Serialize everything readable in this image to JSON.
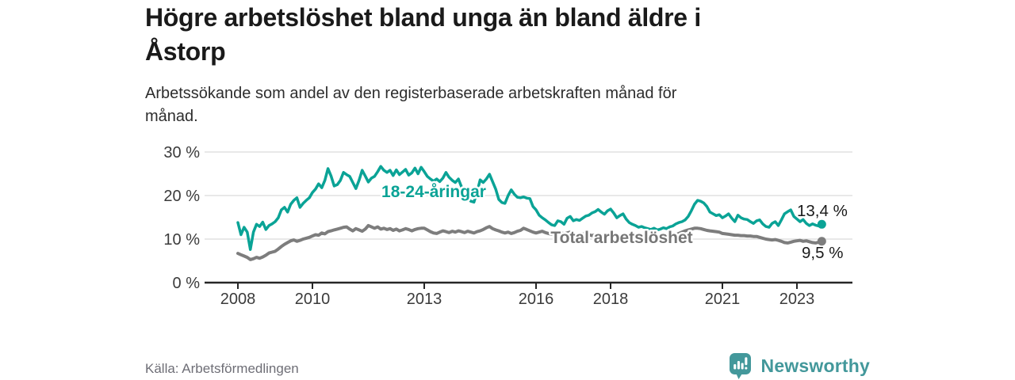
{
  "header": {
    "title": "Högre arbetslöshet bland unga än bland äldre i Åstorp",
    "subtitle": "Arbetssökande som andel av den registerbaserade arbetskraften månad för månad."
  },
  "footer": {
    "source": "Källa: Arbetsförmedlingen",
    "brand": "Newsworthy",
    "brand_icon": "newsworthy-bar-chart-bubble-icon"
  },
  "colors": {
    "youth_line": "#0aa396",
    "total_line": "#7d7d7d",
    "total_label": "#767676",
    "value_label": "#1a1a1a",
    "axis": "#262626",
    "grid": "#d9d9d9",
    "tick_text": "#3b3b3b",
    "brand_teal": "#43989b"
  },
  "chart_data": {
    "type": "line",
    "x_start": "2008-01",
    "x_end": "2023-09",
    "frequency": "monthly",
    "grid": "horizontal-only",
    "legend_position": "inline-series-labels",
    "x_ticks": [
      2008,
      2010,
      2013,
      2016,
      2018,
      2021,
      2023
    ],
    "y_ticks": [
      0,
      10,
      20,
      30
    ],
    "y_tick_labels": [
      "0 %",
      "10 %",
      "20 %",
      "30 %"
    ],
    "ylim": [
      0,
      31
    ],
    "ylabel": "",
    "xlabel": "",
    "series": [
      {
        "name": "18-24-åringar",
        "color_key": "youth_line",
        "end_label": "13,4 %",
        "last_value": 13.4,
        "values": [
          13.8,
          11.0,
          12.7,
          11.6,
          7.6,
          11.6,
          13.4,
          12.9,
          13.9,
          12.2,
          13.1,
          13.5,
          14.0,
          14.9,
          16.7,
          17.3,
          16.2,
          18.0,
          18.9,
          19.5,
          17.3,
          18.2,
          18.9,
          19.5,
          20.7,
          21.5,
          22.7,
          21.8,
          23.5,
          26.2,
          24.5,
          22.2,
          22.5,
          23.5,
          25.3,
          24.8,
          24.4,
          23.0,
          21.6,
          23.5,
          25.8,
          24.5,
          23.1,
          24.0,
          24.4,
          25.5,
          26.7,
          25.8,
          25.3,
          25.8,
          24.6,
          25.9,
          24.8,
          25.4,
          26.0,
          24.7,
          25.2,
          26.3,
          25.0,
          26.5,
          25.5,
          24.4,
          23.8,
          23.3,
          23.8,
          23.2,
          24.0,
          25.3,
          24.2,
          23.5,
          23.0,
          23.8,
          22.0,
          20.5,
          19.4,
          18.7,
          18.5,
          20.8,
          23.6,
          23.0,
          23.8,
          24.9,
          23.2,
          21.5,
          19.1,
          18.4,
          18.2,
          20.0,
          21.3,
          20.3,
          19.6,
          19.5,
          19.7,
          19.4,
          19.3,
          17.5,
          16.7,
          15.5,
          14.9,
          14.4,
          13.8,
          13.3,
          13.1,
          14.2,
          14.0,
          13.4,
          14.8,
          15.2,
          14.2,
          14.5,
          14.3,
          14.8,
          15.3,
          15.5,
          16.0,
          16.3,
          16.8,
          16.2,
          15.7,
          16.5,
          16.9,
          16.0,
          14.9,
          15.4,
          15.8,
          14.6,
          13.8,
          13.4,
          13.1,
          12.7,
          12.9,
          12.6,
          12.4,
          12.2,
          12.5,
          12.1,
          12.3,
          12.6,
          12.4,
          12.8,
          13.0,
          13.5,
          13.8,
          14.0,
          14.4,
          15.2,
          16.5,
          18.0,
          18.9,
          18.7,
          18.3,
          17.5,
          16.2,
          15.8,
          15.4,
          15.6,
          14.9,
          15.3,
          15.8,
          14.8,
          14.0,
          15.5,
          14.9,
          14.6,
          14.5,
          14.0,
          13.6,
          14.2,
          14.4,
          13.5,
          12.9,
          12.7,
          13.6,
          14.0,
          13.1,
          14.4,
          15.8,
          16.3,
          16.7,
          15.2,
          14.6,
          14.0,
          14.5,
          13.6,
          13.1,
          13.5,
          13.2,
          13.0,
          13.4
        ]
      },
      {
        "name": "Total arbetslöshet",
        "color_key": "total_line",
        "end_label": "9,5 %",
        "last_value": 9.5,
        "values": [
          6.7,
          6.4,
          6.1,
          5.8,
          5.3,
          5.5,
          5.8,
          5.6,
          5.9,
          6.3,
          6.8,
          7.0,
          7.2,
          7.7,
          8.3,
          8.8,
          9.2,
          9.6,
          9.8,
          9.5,
          9.7,
          10.0,
          10.2,
          10.4,
          10.7,
          11.0,
          10.9,
          11.4,
          11.2,
          11.7,
          11.9,
          12.1,
          12.3,
          12.5,
          12.7,
          12.8,
          12.3,
          11.9,
          12.4,
          12.1,
          11.8,
          12.3,
          13.1,
          12.8,
          12.5,
          12.8,
          12.3,
          12.5,
          12.2,
          12.4,
          12.0,
          12.3,
          11.9,
          12.1,
          12.4,
          12.2,
          11.9,
          12.2,
          12.4,
          12.5,
          12.5,
          12.1,
          11.7,
          11.4,
          11.3,
          11.6,
          11.9,
          11.7,
          11.5,
          11.8,
          11.6,
          11.9,
          11.7,
          11.5,
          11.8,
          11.6,
          11.4,
          11.7,
          11.9,
          12.2,
          12.6,
          12.9,
          12.4,
          12.1,
          11.9,
          11.6,
          11.4,
          11.6,
          11.3,
          11.5,
          11.8,
          12.0,
          12.5,
          12.2,
          11.9,
          11.6,
          11.4,
          11.6,
          11.8,
          11.5,
          11.3,
          11.1,
          11.4,
          11.7,
          11.5,
          11.2,
          11.4,
          11.6,
          11.3,
          11.1,
          10.9,
          11.1,
          11.3,
          11.0,
          10.8,
          11.0,
          11.2,
          11.0,
          10.8,
          11.0,
          10.9,
          10.7,
          10.8,
          10.6,
          10.4,
          10.6,
          10.8,
          10.5,
          10.3,
          10.5,
          10.7,
          10.6,
          10.4,
          10.2,
          10.3,
          10.1,
          10.0,
          10.2,
          10.4,
          10.6,
          10.8,
          11.0,
          11.3,
          11.6,
          11.9,
          12.1,
          12.3,
          12.5,
          12.5,
          12.4,
          12.2,
          12.0,
          11.9,
          11.8,
          11.7,
          11.6,
          11.3,
          11.2,
          11.1,
          11.0,
          10.9,
          10.9,
          10.8,
          10.8,
          10.7,
          10.7,
          10.6,
          10.6,
          10.4,
          10.2,
          10.0,
          9.9,
          9.8,
          9.9,
          9.7,
          9.5,
          9.2,
          9.1,
          9.3,
          9.5,
          9.6,
          9.7,
          9.5,
          9.6,
          9.4,
          9.2,
          9.1,
          9.3,
          9.5
        ]
      }
    ]
  }
}
